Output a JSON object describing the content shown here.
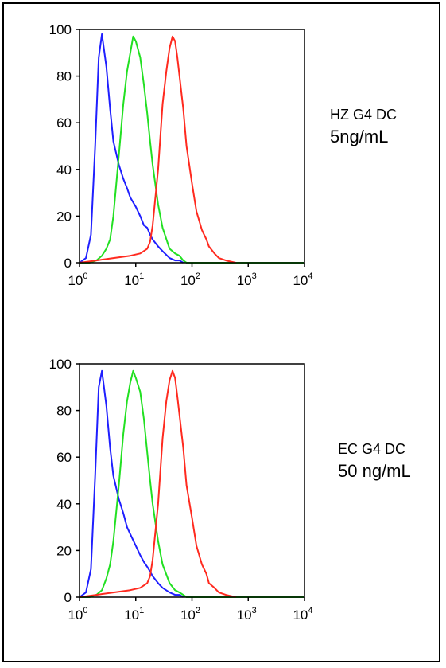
{
  "colors": {
    "blue": "#1f1fff",
    "green": "#22e022",
    "red": "#ff2a1f",
    "axis": "#000000"
  },
  "panels": [
    {
      "label_line1": "HZ G4 DC",
      "label_line2": "5ng/mL"
    },
    {
      "label_line1": "EC G4 DC",
      "label_line2": "50 ng/mL"
    }
  ],
  "chart_data": [
    {
      "type": "line",
      "title": "",
      "xlabel": "",
      "ylabel": "",
      "xscale": "log",
      "xlim": [
        1,
        10000
      ],
      "ylim": [
        0,
        100
      ],
      "x_ticks": [
        "10^0",
        "10^1",
        "10^2",
        "10^3",
        "10^4"
      ],
      "y_ticks": [
        "0",
        "20",
        "40",
        "60",
        "80",
        "100"
      ],
      "series": [
        {
          "color": "blue",
          "x": [
            1.0,
            1.3,
            1.6,
            1.9,
            2.2,
            2.5,
            3.0,
            3.5,
            4.0,
            5.0,
            6.0,
            7.0,
            8.0,
            10,
            12,
            14,
            16,
            18,
            20,
            25,
            30,
            40,
            50,
            60,
            70
          ],
          "y": [
            0,
            2,
            12,
            50,
            88,
            98,
            84,
            66,
            52,
            42,
            36,
            32,
            28,
            24,
            20,
            16,
            15,
            12,
            10,
            7,
            5,
            2,
            1,
            1,
            0
          ]
        },
        {
          "color": "green",
          "x": [
            1.0,
            1.5,
            2.0,
            2.5,
            3.0,
            3.5,
            4.0,
            5.0,
            6.0,
            7.0,
            8.0,
            9.0,
            10,
            12,
            14,
            16,
            18,
            20,
            25,
            30,
            40,
            50,
            60,
            70,
            80,
            100,
            1000,
            10000
          ],
          "y": [
            0,
            0,
            1,
            3,
            6,
            10,
            20,
            46,
            68,
            82,
            90,
            97,
            95,
            88,
            76,
            64,
            52,
            42,
            25,
            15,
            6,
            4,
            3,
            1,
            0,
            0,
            0,
            0
          ]
        },
        {
          "color": "red",
          "x": [
            1.0,
            2.0,
            4.0,
            8.0,
            12,
            16,
            18,
            20,
            25,
            30,
            35,
            40,
            45,
            50,
            55,
            60,
            70,
            80,
            100,
            120,
            150,
            180,
            200,
            250,
            300,
            400,
            600
          ],
          "y": [
            0,
            1,
            2,
            3,
            4,
            6,
            9,
            16,
            40,
            68,
            82,
            92,
            97,
            95,
            88,
            80,
            66,
            50,
            34,
            22,
            14,
            10,
            7,
            4,
            2,
            1,
            0
          ]
        }
      ]
    },
    {
      "type": "line",
      "title": "",
      "xlabel": "",
      "ylabel": "",
      "xscale": "log",
      "xlim": [
        1,
        10000
      ],
      "ylim": [
        0,
        100
      ],
      "x_ticks": [
        "10^0",
        "10^1",
        "10^2",
        "10^3",
        "10^4"
      ],
      "y_ticks": [
        "0",
        "20",
        "40",
        "60",
        "80",
        "100"
      ],
      "series": [
        {
          "color": "blue",
          "x": [
            1.0,
            1.3,
            1.6,
            1.9,
            2.2,
            2.5,
            3.0,
            3.5,
            4.0,
            5.0,
            6.0,
            7.0,
            8.0,
            10,
            12,
            14,
            16,
            18,
            20,
            25,
            30,
            40,
            50,
            60,
            70
          ],
          "y": [
            0,
            2,
            12,
            52,
            90,
            97,
            82,
            64,
            52,
            42,
            36,
            30,
            27,
            22,
            18,
            15,
            13,
            11,
            9,
            6,
            4,
            2,
            1,
            1,
            0
          ]
        },
        {
          "color": "green",
          "x": [
            1.0,
            1.5,
            2.0,
            2.5,
            3.0,
            3.5,
            4.0,
            5.0,
            6.0,
            7.0,
            8.0,
            9.0,
            10,
            12,
            14,
            16,
            18,
            20,
            25,
            30,
            40,
            50,
            60,
            70,
            80,
            100,
            1000,
            10000
          ],
          "y": [
            0,
            0,
            1,
            3,
            8,
            14,
            24,
            48,
            70,
            84,
            92,
            97,
            94,
            88,
            76,
            62,
            50,
            40,
            24,
            14,
            6,
            3,
            2,
            1,
            0,
            0,
            0,
            0
          ]
        },
        {
          "color": "red",
          "x": [
            1.0,
            2.0,
            4.0,
            8.0,
            12,
            16,
            18,
            20,
            25,
            30,
            35,
            40,
            45,
            50,
            55,
            60,
            70,
            80,
            100,
            120,
            150,
            180,
            200,
            250,
            300,
            400,
            600
          ],
          "y": [
            0,
            1,
            2,
            3,
            4,
            6,
            9,
            16,
            40,
            68,
            84,
            93,
            97,
            94,
            86,
            78,
            64,
            48,
            34,
            22,
            14,
            10,
            6,
            4,
            2,
            1,
            0
          ]
        }
      ]
    }
  ]
}
